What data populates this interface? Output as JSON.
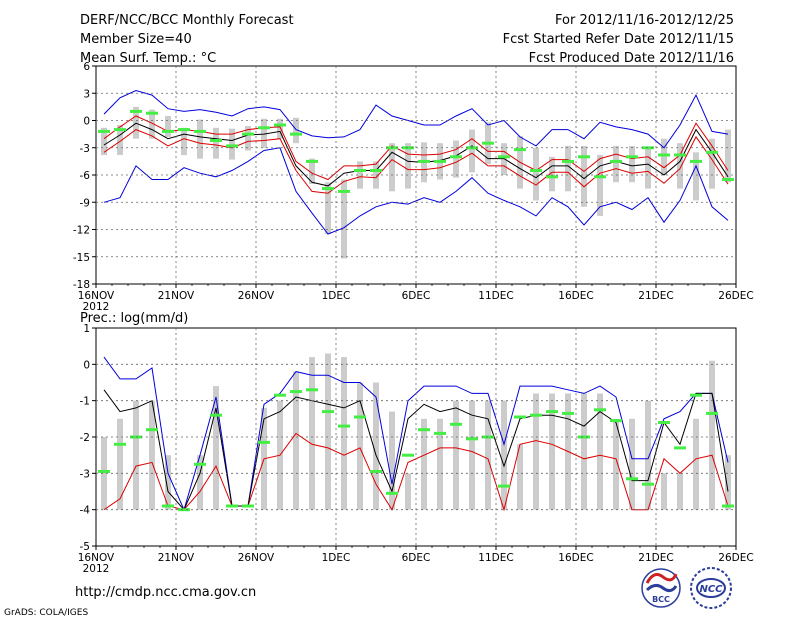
{
  "header": {
    "title": "DERF/NCC/BCC Monthly Forecast",
    "member_size": "Member Size=40",
    "variable": "Mean Surf. Temp.: °C",
    "period": "For 2012/11/16-2012/12/25",
    "refer_date": "Fcst Started Refer Date 2012/11/15",
    "produced_date": "Fcst Produced Date 2012/11/16"
  },
  "footer": {
    "url": "http://cmdp.ncc.cma.gov.cn",
    "credit": "GrADS: COLA/IGES",
    "logo_bcc": "BCC",
    "logo_ncc": "NCC"
  },
  "colors": {
    "bar": "#cccccc",
    "mean": "#000000",
    "spread": "#dd0000",
    "envelope": "#0000dd",
    "median": "#44ee44"
  },
  "chart_data": [
    {
      "type": "bar",
      "title": "Mean Surf. Temp.: °C",
      "ylim": [
        -18,
        6
      ],
      "yticks": [
        6,
        3,
        0,
        -3,
        -6,
        -9,
        -12,
        -15,
        -18
      ],
      "x_labels": [
        "16NOV",
        "21NOV",
        "26NOV",
        "1DEC",
        "6DEC",
        "11DEC",
        "16DEC",
        "21DEC",
        "26DEC"
      ],
      "x_year_label": "2012",
      "days": 40,
      "series": [
        {
          "name": "bar_high",
          "values": [
            -0.8,
            -0.5,
            1.5,
            1.2,
            0.5,
            -0.8,
            0.1,
            -0.8,
            -0.9,
            -0.6,
            0.2,
            0.2,
            0.3,
            -4.2,
            -6.8,
            -6.5,
            -4.5,
            -4.5,
            -2.5,
            -2.5,
            -2.4,
            -2.5,
            -2.2,
            -1.0,
            -0.2,
            -2.5,
            -1.7,
            -3.0,
            -4.0,
            -2.8,
            -2.8,
            -3.8,
            -2.8,
            -2.8,
            -2.9,
            -2.0,
            -2.5,
            -3.5,
            -2.0,
            -1.0
          ]
        },
        {
          "name": "bar_low",
          "values": [
            -3.8,
            -3.8,
            -2.0,
            -2.0,
            -1.8,
            -3.8,
            -4.2,
            -4.2,
            -4.3,
            -3.3,
            -3.0,
            -2.0,
            -2.5,
            -7.0,
            -12.5,
            -15.2,
            -7.5,
            -7.5,
            -7.8,
            -7.5,
            -6.8,
            -6.5,
            -6.3,
            -5.7,
            -4.8,
            -6.0,
            -7.5,
            -8.8,
            -7.8,
            -7.8,
            -9.5,
            -10.5,
            -6.8,
            -6.8,
            -7.5,
            -6.0,
            -7.5,
            -8.8,
            -7.5,
            -6.8
          ]
        },
        {
          "name": "median",
          "values": [
            -1.2,
            -1.0,
            1.0,
            0.8,
            -1.2,
            -1.0,
            -1.2,
            -2.2,
            -2.8,
            -1.5,
            -0.8,
            -0.5,
            -1.5,
            -4.5,
            -7.5,
            -7.8,
            -5.5,
            -5.5,
            -3.0,
            -3.0,
            -4.5,
            -4.5,
            -4.0,
            -3.0,
            -2.5,
            -4.0,
            -3.2,
            -5.5,
            -6.2,
            -4.5,
            -4.0,
            -6.2,
            -4.5,
            -4.0,
            -3.0,
            -3.8,
            -3.8,
            -4.5,
            -3.5,
            -6.5
          ]
        },
        {
          "name": "mean",
          "values": [
            -2.7,
            -1.6,
            -0.3,
            -1.0,
            -2.0,
            -1.5,
            -1.8,
            -2.0,
            -2.2,
            -1.6,
            -1.5,
            -1.2,
            -5.0,
            -6.8,
            -7.2,
            -5.8,
            -5.5,
            -5.5,
            -3.5,
            -4.5,
            -4.6,
            -4.4,
            -3.9,
            -2.8,
            -4.2,
            -4.2,
            -5.3,
            -6.3,
            -5.0,
            -5.0,
            -6.4,
            -5.0,
            -4.5,
            -5.0,
            -4.8,
            -6.0,
            -4.5,
            -1.0,
            -3.5,
            -6.2
          ]
        },
        {
          "name": "spread_upper",
          "values": [
            -2.0,
            -0.7,
            0.5,
            -0.3,
            -1.2,
            -1.0,
            -1.2,
            -1.5,
            -1.5,
            -1.0,
            -0.8,
            -0.7,
            -4.5,
            -5.8,
            -6.5,
            -5.0,
            -5.0,
            -4.8,
            -2.8,
            -3.7,
            -3.8,
            -3.7,
            -3.2,
            -2.0,
            -3.4,
            -3.4,
            -4.6,
            -5.5,
            -4.3,
            -4.3,
            -5.6,
            -4.2,
            -3.7,
            -4.2,
            -4.0,
            -5.2,
            -3.8,
            -0.3,
            -2.8,
            -5.5
          ]
        },
        {
          "name": "spread_lower",
          "values": [
            -3.5,
            -2.3,
            -1.0,
            -1.7,
            -2.8,
            -2.0,
            -2.5,
            -2.7,
            -3.0,
            -2.3,
            -2.2,
            -2.0,
            -5.5,
            -7.8,
            -8.0,
            -6.7,
            -6.2,
            -6.3,
            -4.3,
            -5.4,
            -5.4,
            -5.2,
            -4.6,
            -3.6,
            -5.0,
            -5.0,
            -6.1,
            -7.1,
            -5.7,
            -5.7,
            -7.3,
            -5.8,
            -5.3,
            -5.8,
            -5.6,
            -6.9,
            -5.3,
            -1.8,
            -4.3,
            -7.0
          ]
        },
        {
          "name": "envelope_upper",
          "values": [
            0.7,
            2.5,
            3.3,
            2.8,
            1.3,
            1.0,
            1.2,
            0.9,
            0.5,
            1.3,
            1.5,
            1.2,
            -1.0,
            -1.7,
            -1.9,
            -1.8,
            -1.0,
            1.7,
            0.5,
            0.0,
            -0.5,
            -0.5,
            0.5,
            1.3,
            -0.5,
            0.0,
            -1.8,
            -2.8,
            -1.0,
            -1.0,
            -2.0,
            -0.2,
            -0.7,
            -1.0,
            -1.5,
            -3.0,
            -0.5,
            2.8,
            -1.2,
            -1.5
          ]
        },
        {
          "name": "envelope_lower",
          "values": [
            -9.0,
            -8.5,
            -5.0,
            -6.5,
            -6.5,
            -5.2,
            -5.8,
            -6.2,
            -5.5,
            -4.5,
            -3.3,
            -3.0,
            -7.8,
            -10.2,
            -12.5,
            -11.8,
            -10.5,
            -9.5,
            -9.0,
            -9.2,
            -8.5,
            -9.0,
            -7.8,
            -6.3,
            -8.0,
            -8.8,
            -9.5,
            -10.5,
            -8.5,
            -9.5,
            -11.5,
            -9.5,
            -9.0,
            -9.8,
            -8.5,
            -11.2,
            -8.8,
            -5.0,
            -9.5,
            -11.0
          ]
        }
      ]
    },
    {
      "type": "bar",
      "title": "Prec.: log(mm/d)",
      "ylim": [
        -5,
        1
      ],
      "yticks": [
        1,
        0,
        -1,
        -2,
        -3,
        -4,
        -5
      ],
      "x_labels": [
        "16NOV",
        "21NOV",
        "26NOV",
        "1DEC",
        "6DEC",
        "11DEC",
        "16DEC",
        "21DEC",
        "26DEC"
      ],
      "x_year_label": "2012",
      "days": 40,
      "bar_base": -4,
      "series": [
        {
          "name": "bar_top",
          "values": [
            -2.0,
            -1.5,
            -1.0,
            -1.0,
            -2.5,
            -4.0,
            -2.5,
            -0.6,
            -4.0,
            -4.0,
            -1.2,
            -1.0,
            -0.2,
            0.2,
            0.3,
            0.2,
            -0.5,
            -0.5,
            -1.3,
            -3.0,
            -1.5,
            -1.5,
            -1.0,
            -1.0,
            -1.0,
            -1.0,
            -2.2,
            -0.8,
            -0.8,
            -0.8,
            -0.8,
            -0.8,
            -1.5,
            -1.5,
            -1.0,
            -3.0,
            -3.0,
            -1.5,
            0.1,
            -2.5
          ]
        },
        {
          "name": "median",
          "values": [
            -2.95,
            -2.2,
            -2.0,
            -1.8,
            -3.9,
            -4.0,
            -2.75,
            -1.4,
            -3.9,
            -3.9,
            -2.15,
            -0.85,
            -0.75,
            -0.7,
            -1.3,
            -1.7,
            -1.45,
            -2.95,
            -3.55,
            -2.5,
            -1.8,
            -1.9,
            -1.65,
            -2.05,
            -2.0,
            -3.35,
            -1.45,
            -1.4,
            -1.3,
            -1.35,
            -2.0,
            -1.25,
            -1.55,
            -3.15,
            -3.3,
            -1.6,
            -2.3,
            -0.85,
            -1.35,
            -3.9
          ]
        },
        {
          "name": "mean",
          "values": [
            -0.7,
            -1.3,
            -1.2,
            -1.0,
            -3.5,
            -4.0,
            -3.0,
            -1.2,
            -3.9,
            -3.9,
            -1.5,
            -1.3,
            -0.9,
            -1.0,
            -1.1,
            -1.2,
            -1.0,
            -2.5,
            -3.5,
            -1.5,
            -1.1,
            -1.3,
            -1.2,
            -1.4,
            -1.5,
            -2.8,
            -1.5,
            -1.4,
            -1.4,
            -1.5,
            -1.7,
            -1.3,
            -1.6,
            -3.2,
            -3.2,
            -1.6,
            -2.2,
            -0.8,
            -0.8,
            -3.5
          ]
        },
        {
          "name": "spread_lower",
          "values": [
            -4.0,
            -3.7,
            -2.8,
            -2.7,
            -3.9,
            -4.0,
            -3.5,
            -2.8,
            -3.9,
            -3.9,
            -2.6,
            -2.5,
            -1.9,
            -2.2,
            -2.3,
            -2.5,
            -2.3,
            -3.3,
            -4.0,
            -2.7,
            -2.5,
            -2.3,
            -2.3,
            -2.4,
            -2.6,
            -4.0,
            -2.2,
            -2.1,
            -2.2,
            -2.4,
            -2.6,
            -2.5,
            -2.6,
            -4.0,
            -4.0,
            -2.6,
            -3.0,
            -2.6,
            -2.5,
            -3.9
          ]
        },
        {
          "name": "envelope_upper",
          "values": [
            0.2,
            -0.4,
            -0.4,
            -0.1,
            -3.0,
            -4.0,
            -2.5,
            -0.9,
            -3.9,
            -3.9,
            -1.1,
            -0.8,
            -0.2,
            -0.3,
            -0.3,
            -0.5,
            -0.5,
            -0.9,
            -3.3,
            -1.0,
            -0.6,
            -0.6,
            -0.6,
            -0.8,
            -0.8,
            -2.2,
            -0.6,
            -0.6,
            -0.6,
            -0.7,
            -0.8,
            -0.6,
            -0.9,
            -2.6,
            -2.6,
            -1.5,
            -1.3,
            -0.8,
            -0.8,
            -2.7
          ]
        }
      ]
    }
  ]
}
